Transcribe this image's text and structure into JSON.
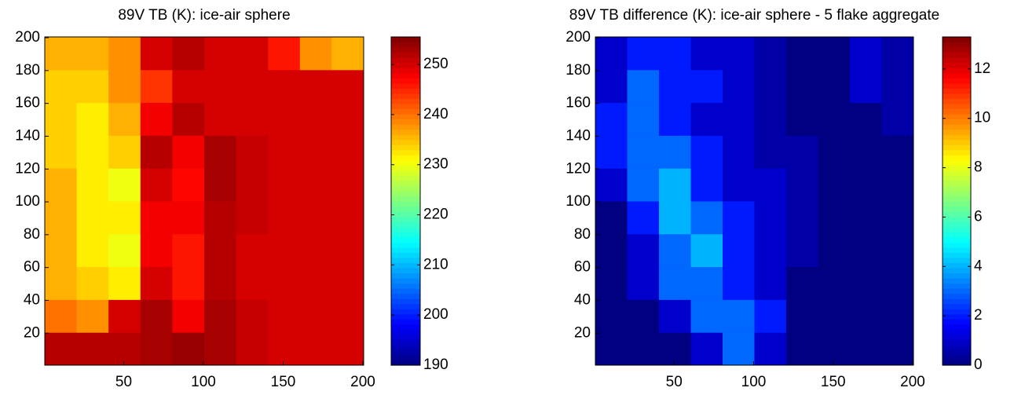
{
  "chart_data": [
    {
      "type": "heatmap",
      "title": "89V TB (K): ice-air sphere",
      "colormap": "jet",
      "xbins": [
        0.5,
        20.5,
        40.5,
        60.5,
        80.5,
        100.5,
        120.5,
        140.5,
        160.5,
        180.5,
        200.5
      ],
      "ybins": [
        0.5,
        20.5,
        40.5,
        60.5,
        80.5,
        100.5,
        120.5,
        140.5,
        160.5,
        180.5,
        200.5
      ],
      "values": [
        [
          252,
          252,
          252,
          253,
          254,
          253,
          251,
          250,
          250,
          250
        ],
        [
          240,
          238,
          250,
          253,
          248,
          253,
          251,
          250,
          250,
          250
        ],
        [
          236,
          234,
          232,
          250,
          246,
          252,
          250,
          250,
          250,
          250
        ],
        [
          236,
          232,
          230,
          248,
          246,
          252,
          250,
          250,
          250,
          250
        ],
        [
          236,
          232,
          232,
          248,
          248,
          252,
          251,
          250,
          250,
          250
        ],
        [
          236,
          232,
          230,
          250,
          247,
          253,
          251,
          250,
          250,
          250
        ],
        [
          234,
          232,
          234,
          252,
          248,
          253,
          251,
          250,
          250,
          250
        ],
        [
          234,
          232,
          236,
          248,
          252,
          250,
          250,
          250,
          250,
          250
        ],
        [
          234,
          234,
          238,
          244,
          250,
          250,
          250,
          250,
          250,
          250
        ],
        [
          236,
          236,
          238,
          250,
          252,
          250,
          250,
          246,
          238,
          236
        ]
      ],
      "xlim": [
        0.5,
        200.5
      ],
      "ylim": [
        0.5,
        200.5
      ],
      "xticks": [
        50,
        100,
        150,
        200
      ],
      "yticks": [
        20,
        40,
        60,
        80,
        100,
        120,
        140,
        160,
        180,
        200
      ],
      "clim": [
        190,
        255.5
      ],
      "cticks": [
        190,
        200,
        210,
        220,
        230,
        240,
        250
      ]
    },
    {
      "type": "heatmap",
      "title": "89V TB difference (K): ice-air sphere - 5 flake aggregate",
      "colormap": "jet",
      "xbins": [
        0.5,
        20.5,
        40.5,
        60.5,
        80.5,
        100.5,
        120.5,
        140.5,
        160.5,
        180.5,
        200.5
      ],
      "ybins": [
        0.5,
        20.5,
        40.5,
        60.5,
        80.5,
        100.5,
        120.5,
        140.5,
        160.5,
        180.5,
        200.5
      ],
      "values": [
        [
          0,
          0,
          0,
          1,
          3,
          1,
          0,
          0,
          0,
          0
        ],
        [
          0,
          0,
          1,
          3,
          3,
          2,
          0,
          0,
          0,
          0
        ],
        [
          0,
          1,
          3,
          3,
          2,
          1,
          0,
          0,
          0,
          0
        ],
        [
          0,
          1,
          3,
          4,
          2,
          1,
          0.5,
          0,
          0,
          0
        ],
        [
          0,
          2,
          4,
          3,
          2,
          1,
          0.5,
          0,
          0,
          0
        ],
        [
          1,
          3,
          4,
          2,
          1,
          1,
          0.5,
          0,
          0,
          0
        ],
        [
          2,
          3,
          3,
          2,
          1,
          0.5,
          0.5,
          0,
          0,
          0
        ],
        [
          2,
          3,
          2,
          1,
          1,
          0.5,
          0,
          0,
          0,
          0.5
        ],
        [
          1,
          3,
          2,
          2,
          1,
          0.5,
          0,
          0,
          1,
          0.5
        ],
        [
          1,
          2,
          2,
          1,
          1,
          0.5,
          0,
          0,
          1,
          0.5
        ]
      ],
      "xlim": [
        0.5,
        200.5
      ],
      "ylim": [
        0.5,
        200.5
      ],
      "xticks": [
        50,
        100,
        150,
        200
      ],
      "yticks": [
        20,
        40,
        60,
        80,
        100,
        120,
        140,
        160,
        180,
        200
      ],
      "clim": [
        0,
        13.3
      ],
      "cticks": [
        0,
        2,
        4,
        6,
        8,
        10,
        12
      ]
    }
  ]
}
